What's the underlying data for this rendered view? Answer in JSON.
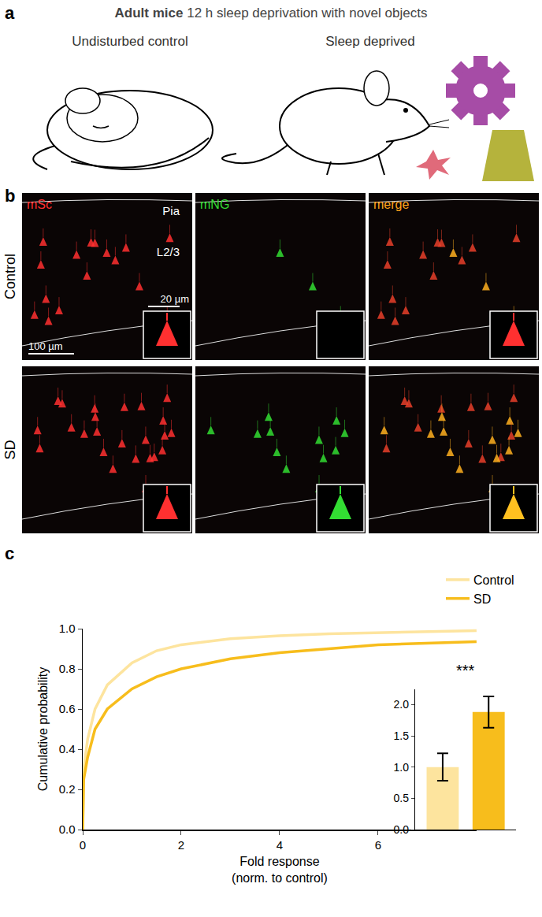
{
  "panel_a": {
    "letter": "a",
    "title_bold": "Adult mice",
    "title_rest": "12 h sleep deprivation with novel objects",
    "labels": [
      "Undisturbed control",
      "Sleep deprived"
    ]
  },
  "panel_b": {
    "letter": "b",
    "rows": [
      "Control",
      "SD"
    ],
    "channels": [
      "mSc",
      "mNG",
      "merge"
    ],
    "pia": "Pia",
    "layer": "L2/3",
    "scale_bar": "100 µm",
    "inset_scale_bar": "20 µm"
  },
  "panel_c": {
    "letter": "c"
  },
  "chart_data": [
    {
      "type": "line",
      "x_title": "Fold response (norm. to control)",
      "y_title": "Cumulative probability",
      "xlim": [
        0,
        8
      ],
      "xticks": [
        0,
        2,
        4,
        6
      ],
      "ylim": [
        0,
        1
      ],
      "yticks": [
        {
          "value": 0,
          "label": "0.0"
        },
        {
          "value": 0.2,
          "label": "0.2"
        },
        {
          "value": 0.4,
          "label": "0.4"
        },
        {
          "value": 0.6,
          "label": "0.6"
        },
        {
          "value": 0.8,
          "label": "0.8"
        },
        {
          "value": 1,
          "label": "1.0"
        }
      ],
      "legend": "top right",
      "x": [
        0,
        0.02,
        0.1,
        0.25,
        0.5,
        1,
        1.5,
        2,
        3,
        4,
        5,
        6,
        8
      ],
      "series": [
        {
          "name": "Control",
          "color": "#fde49e",
          "values": [
            0,
            0.3,
            0.45,
            0.6,
            0.72,
            0.83,
            0.89,
            0.92,
            0.95,
            0.965,
            0.975,
            0.98,
            0.99
          ]
        },
        {
          "name": "SD",
          "color": "#f7bd1c",
          "values": [
            0,
            0.25,
            0.36,
            0.5,
            0.6,
            0.7,
            0.76,
            0.8,
            0.85,
            0.88,
            0.9,
            0.92,
            0.935
          ]
        }
      ]
    },
    {
      "type": "bar",
      "categories": [
        null,
        null
      ],
      "values": [
        1.0,
        1.88
      ],
      "errors": [
        0.22,
        0.25
      ],
      "colors": [
        "#fde49e",
        "#f7bd1c"
      ],
      "ylim": [
        0,
        2.25
      ],
      "yticks": [
        {
          "value": 0,
          "label": "0.0"
        },
        {
          "value": 0.5,
          "label": "0.5"
        },
        {
          "value": 1,
          "label": "1.0"
        },
        {
          "value": 1.5,
          "label": "1.5"
        },
        {
          "value": 2,
          "label": "2.0"
        }
      ],
      "annotation": "***"
    }
  ]
}
